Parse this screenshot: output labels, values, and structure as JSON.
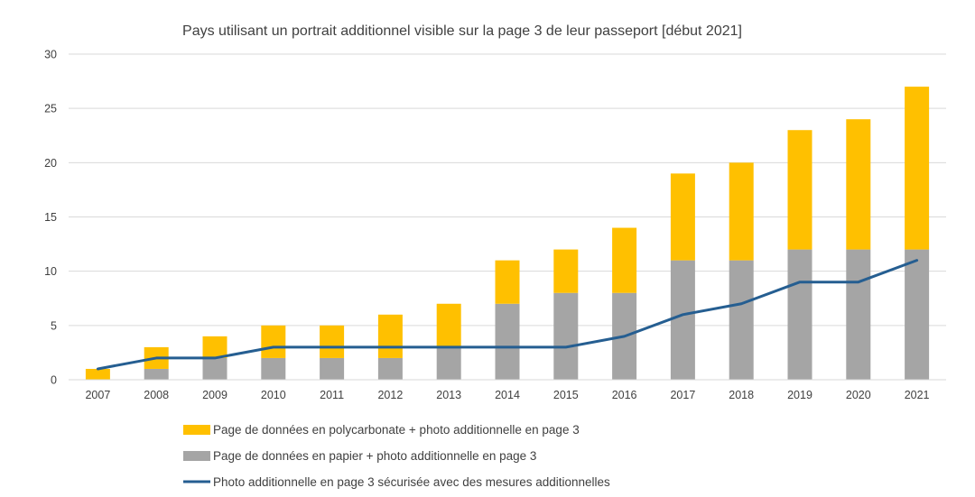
{
  "chart_data": {
    "type": "bar",
    "stacked": true,
    "title": "Pays utilisant un portrait additionnel visible sur la page 3 de leur passeport [début 2021]",
    "xlabel": "",
    "ylabel": "",
    "ylim": [
      0,
      30
    ],
    "yticks": [
      "0",
      "5",
      "10",
      "15",
      "20",
      "25",
      "30"
    ],
    "grid": true,
    "legend_position": "bottom",
    "categories": [
      "2007",
      "2008",
      "2009",
      "2010",
      "2011",
      "2012",
      "2013",
      "2014",
      "2015",
      "2016",
      "2017",
      "2018",
      "2019",
      "2020",
      "2021"
    ],
    "series": [
      {
        "name": "Page de données en papier + photo additionnelle en page 3",
        "kind": "bar",
        "color": "#a5a5a5",
        "values": [
          0,
          1,
          2,
          2,
          2,
          2,
          3,
          7,
          8,
          8,
          11,
          11,
          12,
          12,
          12
        ]
      },
      {
        "name": "Page de données en polycarbonate + photo additionnelle en page 3",
        "kind": "bar",
        "color": "#ffc000",
        "values": [
          1,
          2,
          2,
          3,
          3,
          4,
          4,
          4,
          4,
          6,
          8,
          9,
          11,
          12,
          15
        ]
      },
      {
        "name": "Photo additionnelle en page 3 sécurisée avec des mesures additionnelles",
        "kind": "line",
        "color": "#255e91",
        "values": [
          1,
          2,
          2,
          3,
          3,
          3,
          3,
          3,
          3,
          4,
          6,
          7,
          9,
          9,
          11
        ]
      }
    ],
    "legend": [
      {
        "label": "Page de données en polycarbonate + photo additionnelle en page 3",
        "kind": "bar",
        "color": "#ffc000"
      },
      {
        "label": "Page de données en papier + photo additionnelle en page 3",
        "kind": "bar",
        "color": "#a5a5a5"
      },
      {
        "label": "Photo additionnelle en page 3 sécurisée avec des mesures additionnelles",
        "kind": "line",
        "color": "#255e91"
      }
    ]
  }
}
